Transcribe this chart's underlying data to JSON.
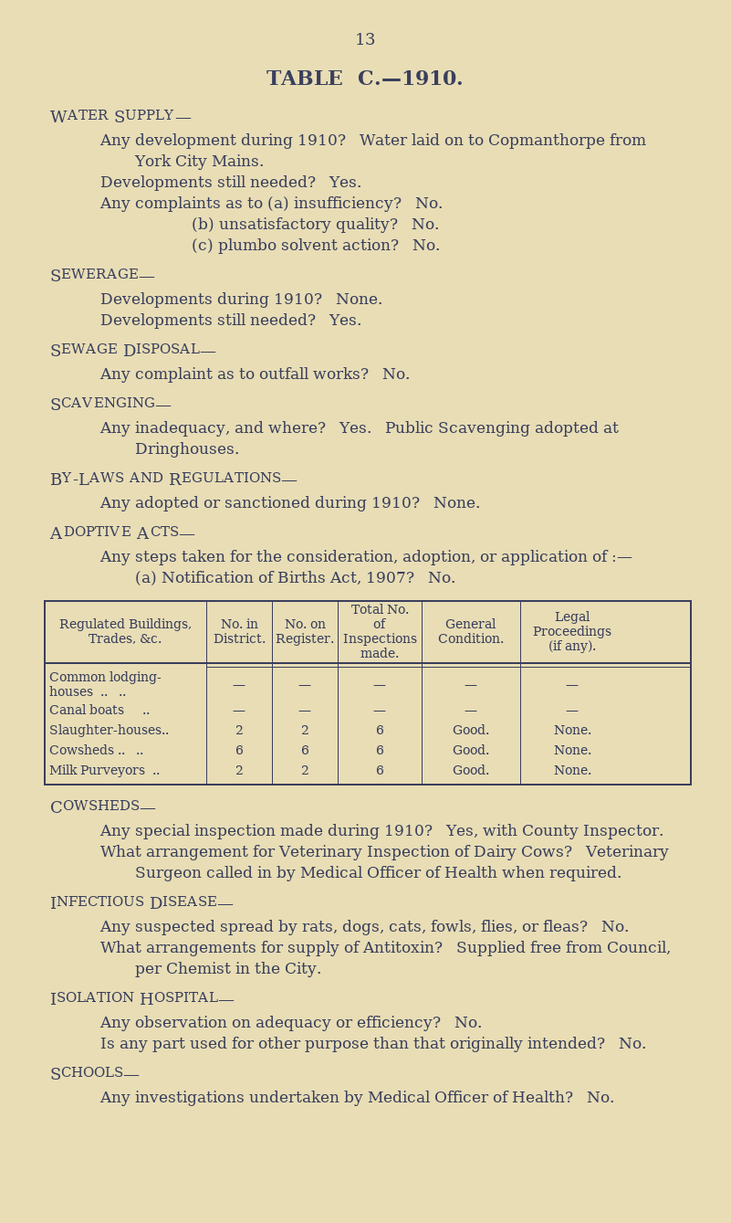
{
  "background_color": "#e8ddb5",
  "text_color": "#3a3f5c",
  "page_number": "13",
  "title": "TABLE  C.—1910.",
  "bg_color": "#e8ddb5"
}
